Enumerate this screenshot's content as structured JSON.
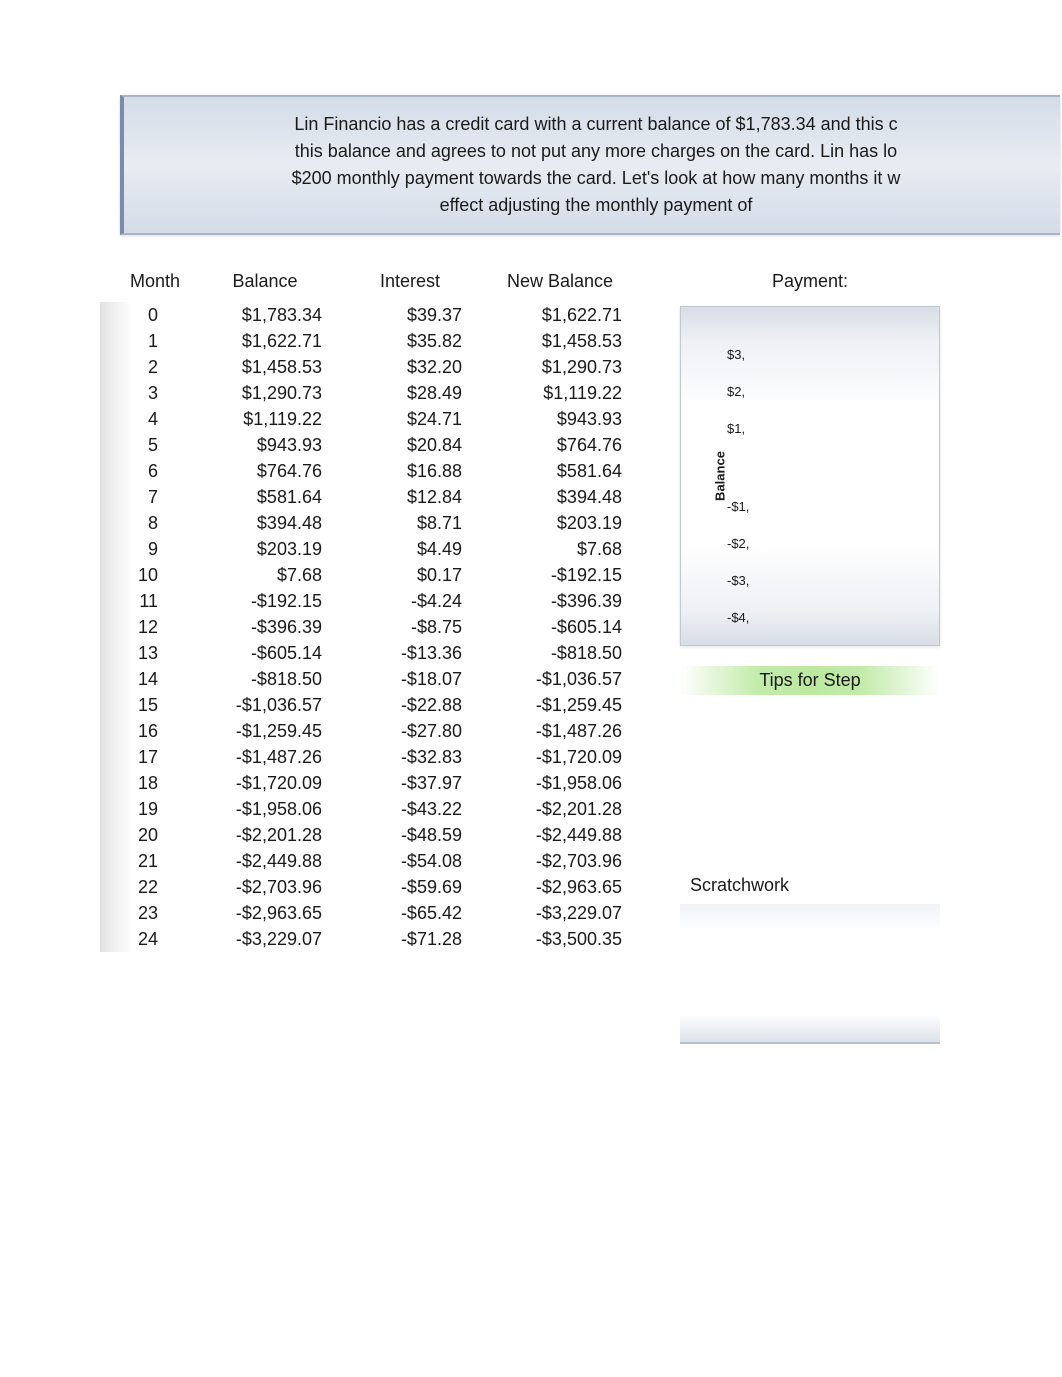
{
  "intro": {
    "line1": "Lin Financio has a credit card with a current balance of $1,783.34 and this c",
    "line2": "this balance and agrees to not put any more charges on the card.  Lin has lo",
    "line3": "$200 monthly payment towards the card.  Let's look at how many months it w",
    "line4": "effect adjusting the monthly payment of"
  },
  "table": {
    "headers": [
      "Month",
      "Balance",
      "Interest",
      "New Balance"
    ],
    "rows": [
      [
        "0",
        "$1,783.34",
        "$39.37",
        "$1,622.71"
      ],
      [
        "1",
        "$1,622.71",
        "$35.82",
        "$1,458.53"
      ],
      [
        "2",
        "$1,458.53",
        "$32.20",
        "$1,290.73"
      ],
      [
        "3",
        "$1,290.73",
        "$28.49",
        "$1,119.22"
      ],
      [
        "4",
        "$1,119.22",
        "$24.71",
        "$943.93"
      ],
      [
        "5",
        "$943.93",
        "$20.84",
        "$764.76"
      ],
      [
        "6",
        "$764.76",
        "$16.88",
        "$581.64"
      ],
      [
        "7",
        "$581.64",
        "$12.84",
        "$394.48"
      ],
      [
        "8",
        "$394.48",
        "$8.71",
        "$203.19"
      ],
      [
        "9",
        "$203.19",
        "$4.49",
        "$7.68"
      ],
      [
        "10",
        "$7.68",
        "$0.17",
        "-$192.15"
      ],
      [
        "11",
        "-$192.15",
        "-$4.24",
        "-$396.39"
      ],
      [
        "12",
        "-$396.39",
        "-$8.75",
        "-$605.14"
      ],
      [
        "13",
        "-$605.14",
        "-$13.36",
        "-$818.50"
      ],
      [
        "14",
        "-$818.50",
        "-$18.07",
        "-$1,036.57"
      ],
      [
        "15",
        "-$1,036.57",
        "-$22.88",
        "-$1,259.45"
      ],
      [
        "16",
        "-$1,259.45",
        "-$27.80",
        "-$1,487.26"
      ],
      [
        "17",
        "-$1,487.26",
        "-$32.83",
        "-$1,720.09"
      ],
      [
        "18",
        "-$1,720.09",
        "-$37.97",
        "-$1,958.06"
      ],
      [
        "19",
        "-$1,958.06",
        "-$43.22",
        "-$2,201.28"
      ],
      [
        "20",
        "-$2,201.28",
        "-$48.59",
        "-$2,449.88"
      ],
      [
        "21",
        "-$2,449.88",
        "-$54.08",
        "-$2,703.96"
      ],
      [
        "22",
        "-$2,703.96",
        "-$59.69",
        "-$2,963.65"
      ],
      [
        "23",
        "-$2,963.65",
        "-$65.42",
        "-$3,229.07"
      ],
      [
        "24",
        "-$3,229.07",
        "-$71.28",
        "-$3,500.35"
      ]
    ]
  },
  "sidebar": {
    "payment_label": "Payment:",
    "chart": {
      "y_axis_label": "Balance",
      "y_ticks_pos": [
        "$3,",
        "$2,",
        "$1,"
      ],
      "y_ticks_neg": [
        "-$1,",
        "-$2,",
        "-$3,",
        "-$4,"
      ]
    },
    "tips_label": "Tips for Step",
    "scratchwork_label": "Scratchwork"
  },
  "colors": {
    "intro_bg": "#e0e6ef",
    "intro_border": "#7a8ca8",
    "tips_bg": "#b8e596",
    "text": "#1a1a1a"
  }
}
